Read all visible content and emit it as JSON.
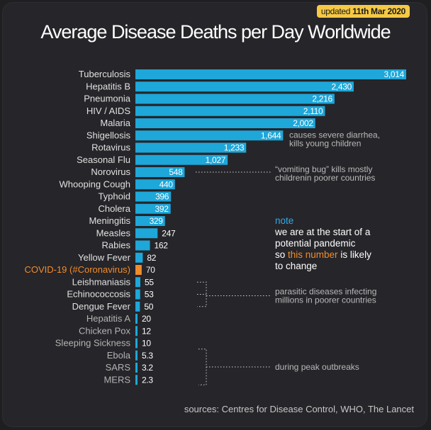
{
  "badge": {
    "prefix": "updated",
    "date": "11th Mar 2020"
  },
  "chart_data": {
    "type": "bar",
    "orientation": "horizontal",
    "title": "Average Disease Deaths per Day Worldwide",
    "categories": [
      "Tuberculosis",
      "Hepatitis B",
      "Pneumonia",
      "HIV / AIDS",
      "Malaria",
      "Shigellosis",
      "Rotavirus",
      "Seasonal Flu",
      "Norovirus",
      "Whooping Cough",
      "Typhoid",
      "Cholera",
      "Meningitis",
      "Measles",
      "Rabies",
      "Yellow Fever",
      "COVID-19 (#Coronavirus)",
      "Leishmaniasis",
      "Echinococcosis",
      "Dengue Fever",
      "Hepatitis A",
      "Chicken Pox",
      "Sleeping Sickness",
      "Ebola",
      "SARS",
      "MERS"
    ],
    "values": [
      3014,
      2430,
      2216,
      2110,
      2002,
      1644,
      1233,
      1027,
      548,
      440,
      396,
      392,
      329,
      247,
      162,
      82,
      70,
      55,
      53,
      50,
      20,
      12,
      10,
      5.3,
      3.2,
      2.3
    ],
    "value_labels": [
      "3,014",
      "2,430",
      "2,216",
      "2,110",
      "2,002",
      "1,644",
      "1,233",
      "1,027",
      "548",
      "440",
      "396",
      "392",
      "329",
      "247",
      "162",
      "82",
      "70",
      "55",
      "53",
      "50",
      "20",
      "12",
      "10",
      "5.3",
      "3.2",
      "2.3"
    ],
    "highlight_index": 16,
    "bar_color": "#1ea7d9",
    "highlight_color": "#f08c2c",
    "label_colors": {
      "normal": "#e0e0e0",
      "dim": "#b3b3b3",
      "highlight": "#f08c2c"
    },
    "annotations": [
      {
        "text": [
          "causes severe diarrhea,",
          "kills young children"
        ],
        "target": "Shigellosis"
      },
      {
        "text": [
          "“vomiting bug” kills mostly",
          "childrenin poorer countries"
        ],
        "target": "Norovirus"
      },
      {
        "text": [
          "parasitic diseases infecting",
          "millions in poorer countries"
        ],
        "target": [
          "Leishmaniasis",
          "Echinococcosis",
          "Dengue Fever"
        ]
      },
      {
        "text": [
          "during peak outbreaks"
        ],
        "target": [
          "Ebola",
          "SARS",
          "MERS"
        ]
      }
    ]
  },
  "note": {
    "label": "note",
    "line1": "we are at the start of a",
    "line2": "potential pandemic",
    "line3_pre": "so ",
    "line3_hl": "this number",
    "line3_post": " is likely",
    "line4": "to change"
  },
  "sources": "sources: Centres for Disease Control, WHO, The Lancet"
}
